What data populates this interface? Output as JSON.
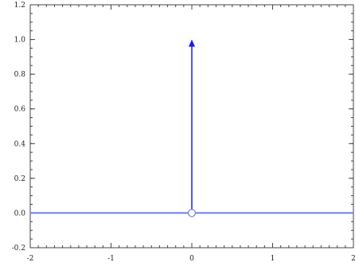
{
  "chart_data": {
    "type": "line",
    "title": "",
    "xlabel": "",
    "ylabel": "",
    "xlim": [
      -2,
      2
    ],
    "ylim": [
      -0.2,
      1.2
    ],
    "grid": false,
    "legend": "none",
    "x_ticks": [
      -2,
      -1,
      0,
      1,
      2
    ],
    "x_tick_labels": [
      "-2",
      "-1",
      "0",
      "1",
      "2"
    ],
    "y_ticks": [
      -0.2,
      0.0,
      0.2,
      0.4,
      0.6,
      0.8,
      1.0,
      1.2
    ],
    "y_tick_labels": [
      "-0.2",
      "0.0",
      "0.2",
      "0.4",
      "0.6",
      "0.8",
      "1.0",
      "1.2"
    ],
    "series": [
      {
        "style": "horizontal-line",
        "x": [
          -2,
          2
        ],
        "y": [
          0,
          0
        ],
        "hollow_point": {
          "x": 0,
          "y": 0
        },
        "color": "#6f7cf0"
      },
      {
        "style": "impulse-arrow",
        "x": 0,
        "y_from": 0,
        "y_to": 1,
        "color": "#1a1aff"
      }
    ]
  }
}
